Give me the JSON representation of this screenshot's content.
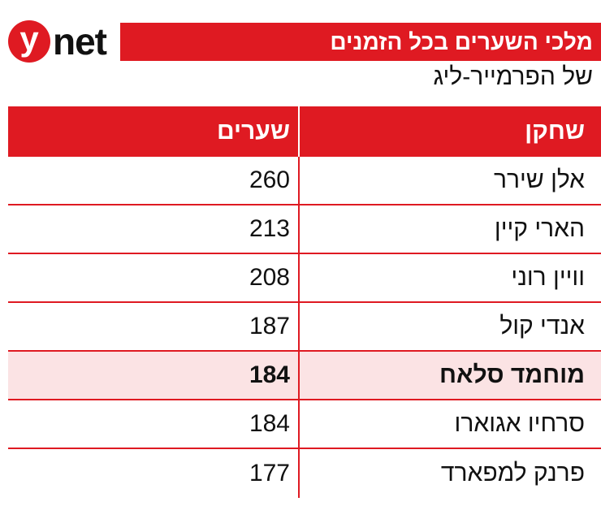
{
  "logo": {
    "mark": "y",
    "text": "net"
  },
  "title": "מלכי השערים בכל הזמנים",
  "subtitle": "של הפרמייר-ליג",
  "table": {
    "headers": {
      "player": "שחקן",
      "goals": "שערים"
    },
    "rows": [
      {
        "player": "אלן שירר",
        "goals": "260"
      },
      {
        "player": "הארי קיין",
        "goals": "213"
      },
      {
        "player": "וויין רוני",
        "goals": "208"
      },
      {
        "player": "אנדי קול",
        "goals": "187"
      },
      {
        "player": "מוחמד סלאח",
        "goals": "184"
      },
      {
        "player": "סרחיו אגוארו",
        "goals": "184"
      },
      {
        "player": "פרנק למפארד",
        "goals": "177"
      }
    ]
  },
  "colors": {
    "accent": "#df1a22",
    "highlight_row": "#fbe3e4"
  }
}
